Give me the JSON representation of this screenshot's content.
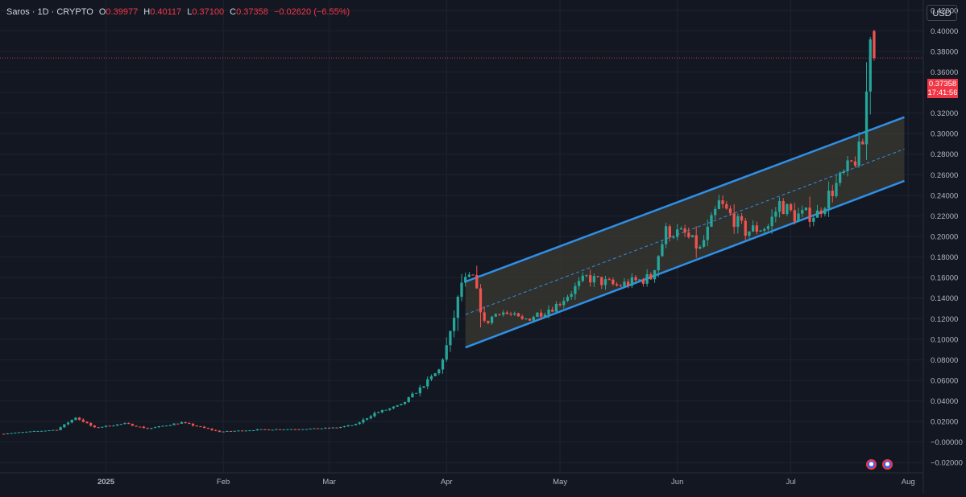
{
  "header": {
    "symbol_line": "Saros · 1D · CRYPTO",
    "open_label": "O",
    "open": "0.39977",
    "high_label": "H",
    "high": "0.40117",
    "low_label": "L",
    "low": "0.37100",
    "close_label": "C",
    "close": "0.37358",
    "change": "−0.02620 (−6.55%)"
  },
  "price_scale": {
    "currency": "USD"
  },
  "last_price": {
    "value": "0.37358",
    "countdown": "17:41:56"
  },
  "colors": {
    "background": "#131722",
    "up": "#26a69a",
    "down": "#ef5350",
    "channel_line": "#2f8fe6",
    "channel_fill": "#3b3a30",
    "grid": "#1f2330",
    "text": "#b2b5be",
    "last_price": "#f23645"
  },
  "events": [
    {
      "icon": "event-flag-icon",
      "date": "2025-07-22"
    },
    {
      "icon": "event-flag-icon",
      "date": "2025-07-24"
    }
  ],
  "chart_data": {
    "type": "candlestick",
    "timeframe": "1D",
    "x_range": [
      "2024-12-04",
      "2025-08-05"
    ],
    "ylim": [
      -0.03,
      0.43
    ],
    "y_ticks": [
      "0.42000",
      "0.40000",
      "0.38000",
      "0.36000",
      "0.34000",
      "0.32000",
      "0.30000",
      "0.28000",
      "0.26000",
      "0.24000",
      "0.22000",
      "0.20000",
      "0.18000",
      "0.16000",
      "0.14000",
      "0.12000",
      "0.10000",
      "0.08000",
      "0.06000",
      "0.04000",
      "0.02000",
      "−0.00000",
      "−0.02000"
    ],
    "x_ticks": [
      {
        "label": "2025",
        "date": "2025-01-01"
      },
      {
        "label": "Feb",
        "date": "2025-02-01"
      },
      {
        "label": "Mar",
        "date": "2025-03-01"
      },
      {
        "label": "Apr",
        "date": "2025-04-01"
      },
      {
        "label": "May",
        "date": "2025-05-01"
      },
      {
        "label": "Jun",
        "date": "2025-06-01"
      },
      {
        "label": "Jul",
        "date": "2025-07-01"
      },
      {
        "label": "Aug",
        "date": "2025-08-01"
      }
    ],
    "grid": true,
    "last_price_line": 0.37358,
    "channel": {
      "start": "2025-04-06",
      "end": "2025-07-31",
      "upper": [
        0.156,
        0.316
      ],
      "lower": [
        0.092,
        0.254
      ]
    },
    "price_path": [
      [
        "2024-12-04",
        0.008
      ],
      [
        "2024-12-19",
        0.012
      ],
      [
        "2024-12-24",
        0.024
      ],
      [
        "2024-12-29",
        0.014
      ],
      [
        "2025-01-06",
        0.018
      ],
      [
        "2025-01-12",
        0.013
      ],
      [
        "2025-01-21",
        0.019
      ],
      [
        "2025-01-31",
        0.01
      ],
      [
        "2025-02-10",
        0.012
      ],
      [
        "2025-02-25",
        0.013
      ],
      [
        "2025-03-03",
        0.014
      ],
      [
        "2025-03-08",
        0.017
      ],
      [
        "2025-03-13",
        0.028
      ],
      [
        "2025-03-20",
        0.036
      ],
      [
        "2025-03-25",
        0.052
      ],
      [
        "2025-03-30",
        0.07
      ],
      [
        "2025-04-02",
        0.105
      ],
      [
        "2025-04-05",
        0.155
      ],
      [
        "2025-04-08",
        0.16
      ],
      [
        "2025-04-11",
        0.115
      ],
      [
        "2025-04-15",
        0.128
      ],
      [
        "2025-04-21",
        0.118
      ],
      [
        "2025-04-30",
        0.133
      ],
      [
        "2025-05-08",
        0.16
      ],
      [
        "2025-05-16",
        0.152
      ],
      [
        "2025-05-25",
        0.16
      ],
      [
        "2025-05-29",
        0.205
      ],
      [
        "2025-06-03",
        0.202
      ],
      [
        "2025-06-07",
        0.187
      ],
      [
        "2025-06-12",
        0.232
      ],
      [
        "2025-06-19",
        0.205
      ],
      [
        "2025-06-25",
        0.21
      ],
      [
        "2025-06-28",
        0.232
      ],
      [
        "2025-07-02",
        0.22
      ],
      [
        "2025-07-08",
        0.222
      ],
      [
        "2025-07-11",
        0.24
      ],
      [
        "2025-07-15",
        0.26
      ],
      [
        "2025-07-18",
        0.275
      ],
      [
        "2025-07-20",
        0.29
      ],
      [
        "2025-07-21",
        0.34
      ],
      [
        "2025-07-22",
        0.3998
      ]
    ],
    "last_candle": {
      "date": "2025-07-23",
      "open": 0.39977,
      "high": 0.40117,
      "low": 0.371,
      "close": 0.37358
    }
  }
}
